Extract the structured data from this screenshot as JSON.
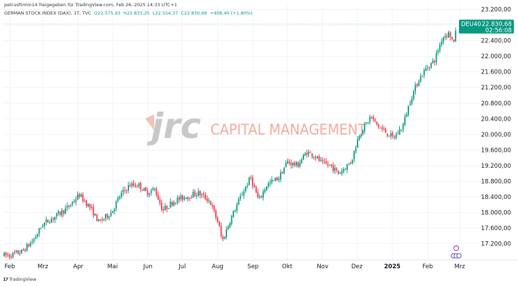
{
  "header": {
    "attribution": "petrusfirmin14 freigegeben für TradingView.com, Feb 26, 2025 14:33 UTC+1",
    "symbol_line": "GERMAN STOCK INDEX (DAX), 1T, TVC",
    "open": "O22.575,93",
    "high": "H22.833,25",
    "low": "L22.554,37",
    "close": "C22.830,68",
    "change": "+408,40 (+1,80%)"
  },
  "watermark": {
    "logo_text": "jrc",
    "company_text": "CAPITAL MANAGEMENT"
  },
  "price_badge": {
    "symbol": "DEU40",
    "price": "22.830,68",
    "countdown": "02:56:08"
  },
  "footer": {
    "brand": "TradingView"
  },
  "chart_data": {
    "type": "candlestick",
    "title": "",
    "xlabel": "",
    "ylabel": "",
    "ylim": [
      16800,
      23300
    ],
    "y_ticks": [
      "17.200,00",
      "17.600,00",
      "18.000,00",
      "18.400,00",
      "18.800,00",
      "19.200,00",
      "19.600,00",
      "20.000,00",
      "20.400,00",
      "20.800,00",
      "21.200,00",
      "21.600,00",
      "22.000,00",
      "22.400,00",
      "22.800,00",
      "23.200,00"
    ],
    "x_ticks": [
      "Feb",
      "Mrz",
      "Apr",
      "Mai",
      "Jun",
      "Jul",
      "Aug",
      "Sep",
      "Okt",
      "Nov",
      "Dez",
      "2025",
      "Feb",
      "Mrz"
    ],
    "last_price": 22830.68,
    "up_color": "#089981",
    "down_color": "#f23645",
    "grid": true,
    "price_axis": "right",
    "approx_close_path": [
      [
        "2024-02-01",
        16900
      ],
      [
        "2024-02-12",
        17000
      ],
      [
        "2024-02-22",
        17300
      ],
      [
        "2024-03-01",
        17700
      ],
      [
        "2024-03-12",
        17900
      ],
      [
        "2024-03-22",
        18100
      ],
      [
        "2024-04-02",
        18450
      ],
      [
        "2024-04-12",
        18100
      ],
      [
        "2024-04-19",
        17750
      ],
      [
        "2024-04-30",
        18000
      ],
      [
        "2024-05-08",
        18450
      ],
      [
        "2024-05-16",
        18700
      ],
      [
        "2024-05-24",
        18700
      ],
      [
        "2024-05-31",
        18500
      ],
      [
        "2024-06-07",
        18600
      ],
      [
        "2024-06-14",
        18050
      ],
      [
        "2024-06-24",
        18300
      ],
      [
        "2024-07-04",
        18400
      ],
      [
        "2024-07-15",
        18500
      ],
      [
        "2024-07-25",
        18300
      ],
      [
        "2024-08-02",
        17700
      ],
      [
        "2024-08-05",
        17250
      ],
      [
        "2024-08-12",
        17800
      ],
      [
        "2024-08-22",
        18450
      ],
      [
        "2024-08-30",
        18900
      ],
      [
        "2024-09-06",
        18300
      ],
      [
        "2024-09-13",
        18700
      ],
      [
        "2024-09-24",
        18900
      ],
      [
        "2024-10-01",
        19300
      ],
      [
        "2024-10-10",
        19200
      ],
      [
        "2024-10-18",
        19550
      ],
      [
        "2024-10-25",
        19450
      ],
      [
        "2024-11-01",
        19250
      ],
      [
        "2024-11-08",
        19200
      ],
      [
        "2024-11-15",
        19000
      ],
      [
        "2024-11-26",
        19300
      ],
      [
        "2024-12-03",
        20000
      ],
      [
        "2024-12-10",
        20300
      ],
      [
        "2024-12-13",
        20450
      ],
      [
        "2024-12-20",
        20200
      ],
      [
        "2025-01-02",
        19900
      ],
      [
        "2025-01-10",
        20200
      ],
      [
        "2025-01-17",
        20900
      ],
      [
        "2025-01-24",
        21400
      ],
      [
        "2025-01-31",
        21700
      ],
      [
        "2025-02-07",
        21900
      ],
      [
        "2025-02-14",
        22500
      ],
      [
        "2025-02-20",
        22600
      ],
      [
        "2025-02-24",
        22300
      ],
      [
        "2025-02-26",
        22830.68
      ]
    ]
  }
}
